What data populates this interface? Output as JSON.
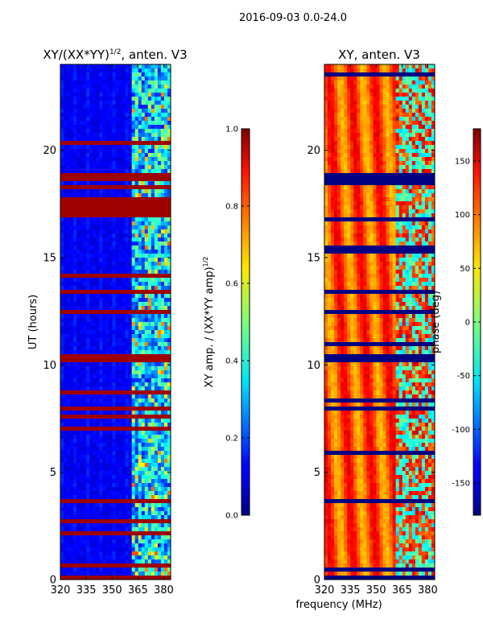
{
  "figure_title": "2016-09-03 0.0-24.0",
  "xlabel_shared": "frequency (MHz)",
  "chart_data": [
    {
      "type": "heatmap",
      "title_main": "XY/(XX*YY)",
      "title_sup": "1/2",
      "title_tail": ", anten. V3",
      "ylabel": "UT (hours)",
      "x_ticks": [
        320,
        335,
        350,
        365,
        380
      ],
      "y_ticks": [
        0,
        5,
        10,
        15,
        20
      ],
      "xlim": [
        320,
        384
      ],
      "ylim": [
        0,
        24
      ],
      "colorbar": {
        "label_main": "XY amp. / (XX*YY amp)",
        "label_sup": "1/2",
        "range": [
          0.0,
          1.0
        ],
        "ticks": [
          0.0,
          0.2,
          0.4,
          0.6,
          0.8,
          1.0
        ],
        "tick_labels": [
          "0.0",
          "0.2",
          "0.4",
          "0.6",
          "0.8",
          "1.0"
        ],
        "colormap": "jet"
      },
      "saturated_time_bands_hours": [
        [
          0.0,
          0.12
        ],
        [
          3.55,
          3.75
        ],
        [
          7.95,
          8.12
        ],
        [
          10.2,
          10.45
        ],
        [
          12.3,
          12.55
        ],
        [
          13.4,
          13.55
        ],
        [
          16.8,
          17.8
        ],
        [
          18.55,
          18.85
        ]
      ]
    },
    {
      "type": "heatmap",
      "title": "XY, anten. V3",
      "x_ticks": [
        320,
        335,
        350,
        365,
        380
      ],
      "y_ticks": [
        0,
        5,
        10,
        15,
        20
      ],
      "xlim": [
        320,
        384
      ],
      "ylim": [
        0,
        24
      ],
      "colorbar": {
        "label": "phase (deg)",
        "range": [
          -180,
          180
        ],
        "ticks": [
          -150,
          -100,
          -50,
          0,
          50,
          100,
          150
        ],
        "tick_labels": [
          "-150",
          "-100",
          "-50",
          "0",
          "50",
          "100",
          "150"
        ],
        "colormap": "jet"
      },
      "flagged_time_bands_hours": [
        [
          0.0,
          0.12
        ],
        [
          3.55,
          3.75
        ],
        [
          7.95,
          8.12
        ],
        [
          10.2,
          10.45
        ],
        [
          12.3,
          12.55
        ],
        [
          13.4,
          13.55
        ],
        [
          18.55,
          18.85
        ]
      ]
    }
  ]
}
